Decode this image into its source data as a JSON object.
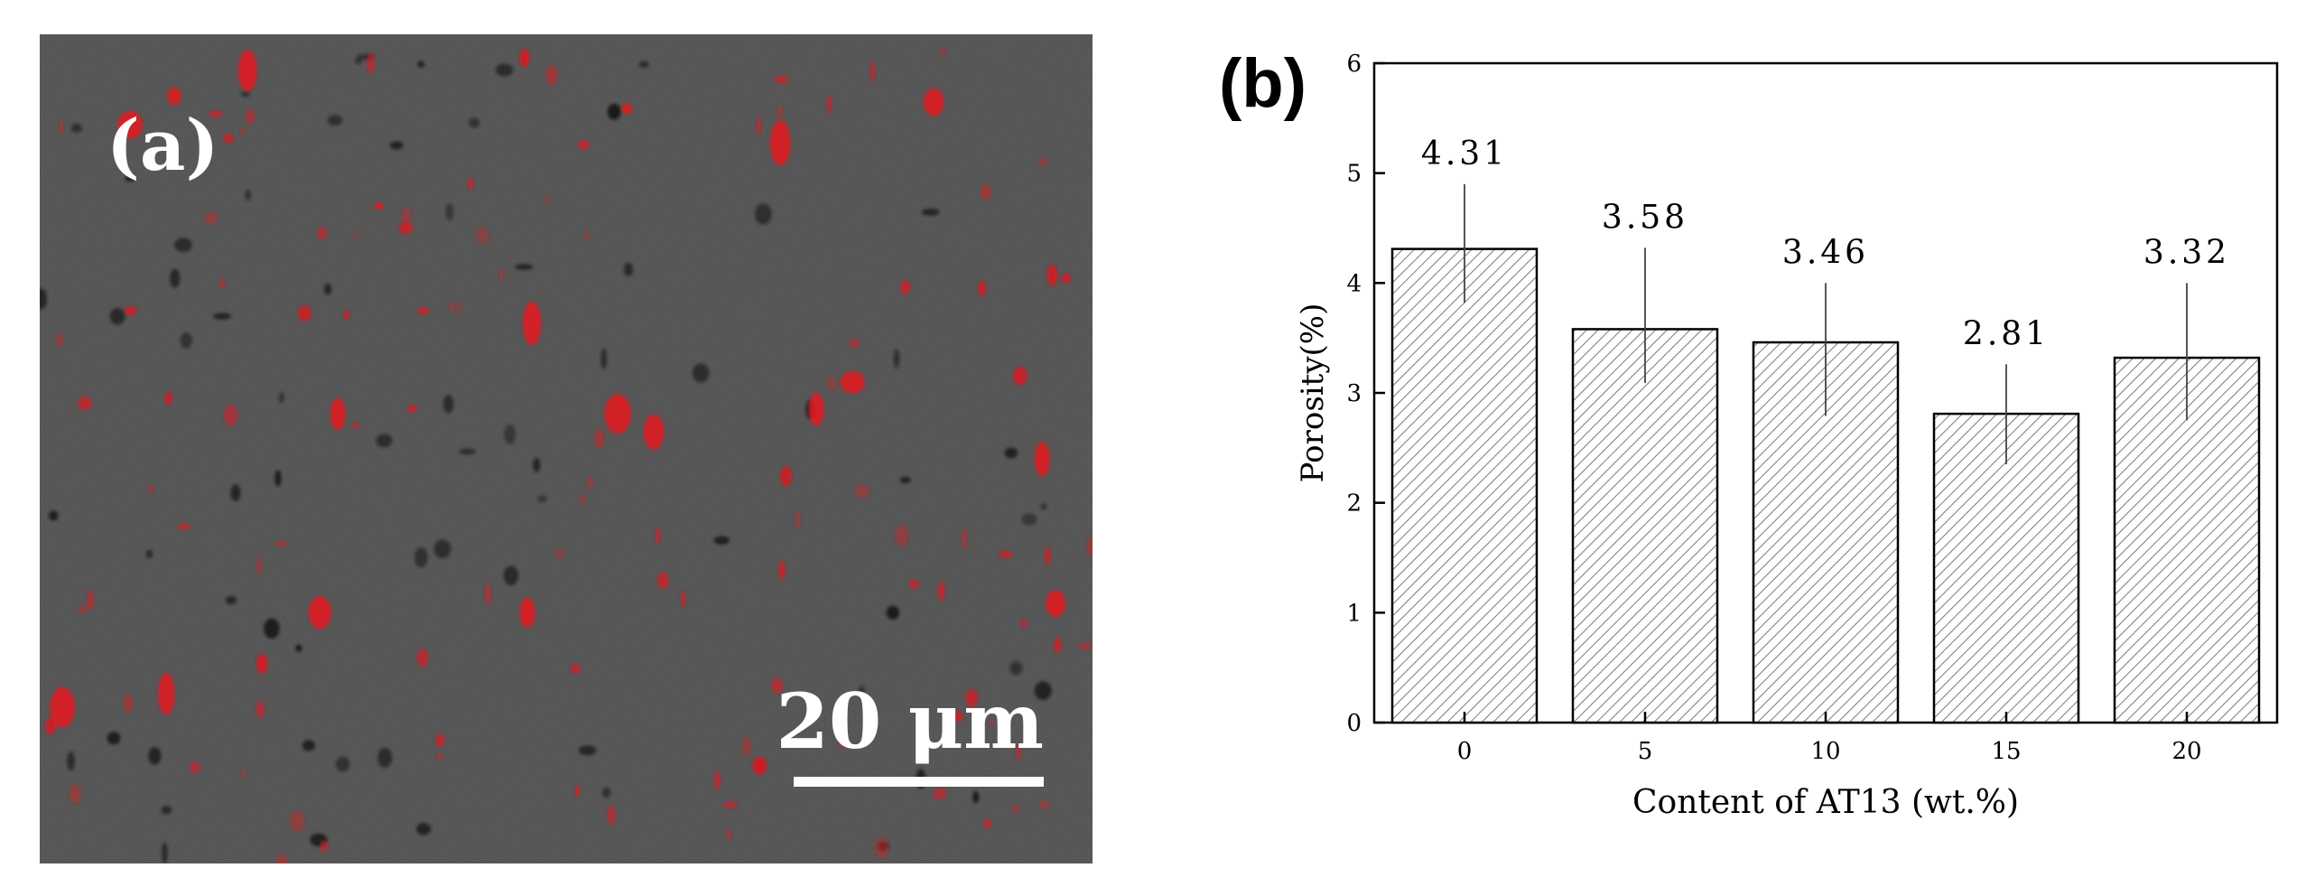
{
  "panel_a": {
    "label": "(a)",
    "scale_bar_label": "20 μm",
    "colors": {
      "background": "#4d4d4d",
      "particle": "#e8141c",
      "pore": "#1a1a1a",
      "text": "#ffffff"
    }
  },
  "panel_b": {
    "label": "(b)"
  },
  "chart_data": {
    "type": "bar",
    "categories": [
      "0",
      "5",
      "10",
      "15",
      "20"
    ],
    "values": [
      4.31,
      3.58,
      3.46,
      2.81,
      3.32
    ],
    "value_labels": [
      "4.31",
      "3.58",
      "3.46",
      "2.81",
      "3.32"
    ],
    "error_low": [
      3.82,
      3.09,
      2.79,
      2.35,
      2.75
    ],
    "error_high": [
      4.9,
      4.32,
      4.0,
      3.26,
      4.0
    ],
    "xlabel": "Content of AT13 (wt.%)",
    "ylabel": "Porosity(%)",
    "ylim": [
      0,
      6
    ],
    "yticks": [
      "0",
      "1",
      "2",
      "3",
      "4",
      "5",
      "6"
    ],
    "bar_fill": "hatched",
    "grid": false,
    "legend": "none"
  }
}
